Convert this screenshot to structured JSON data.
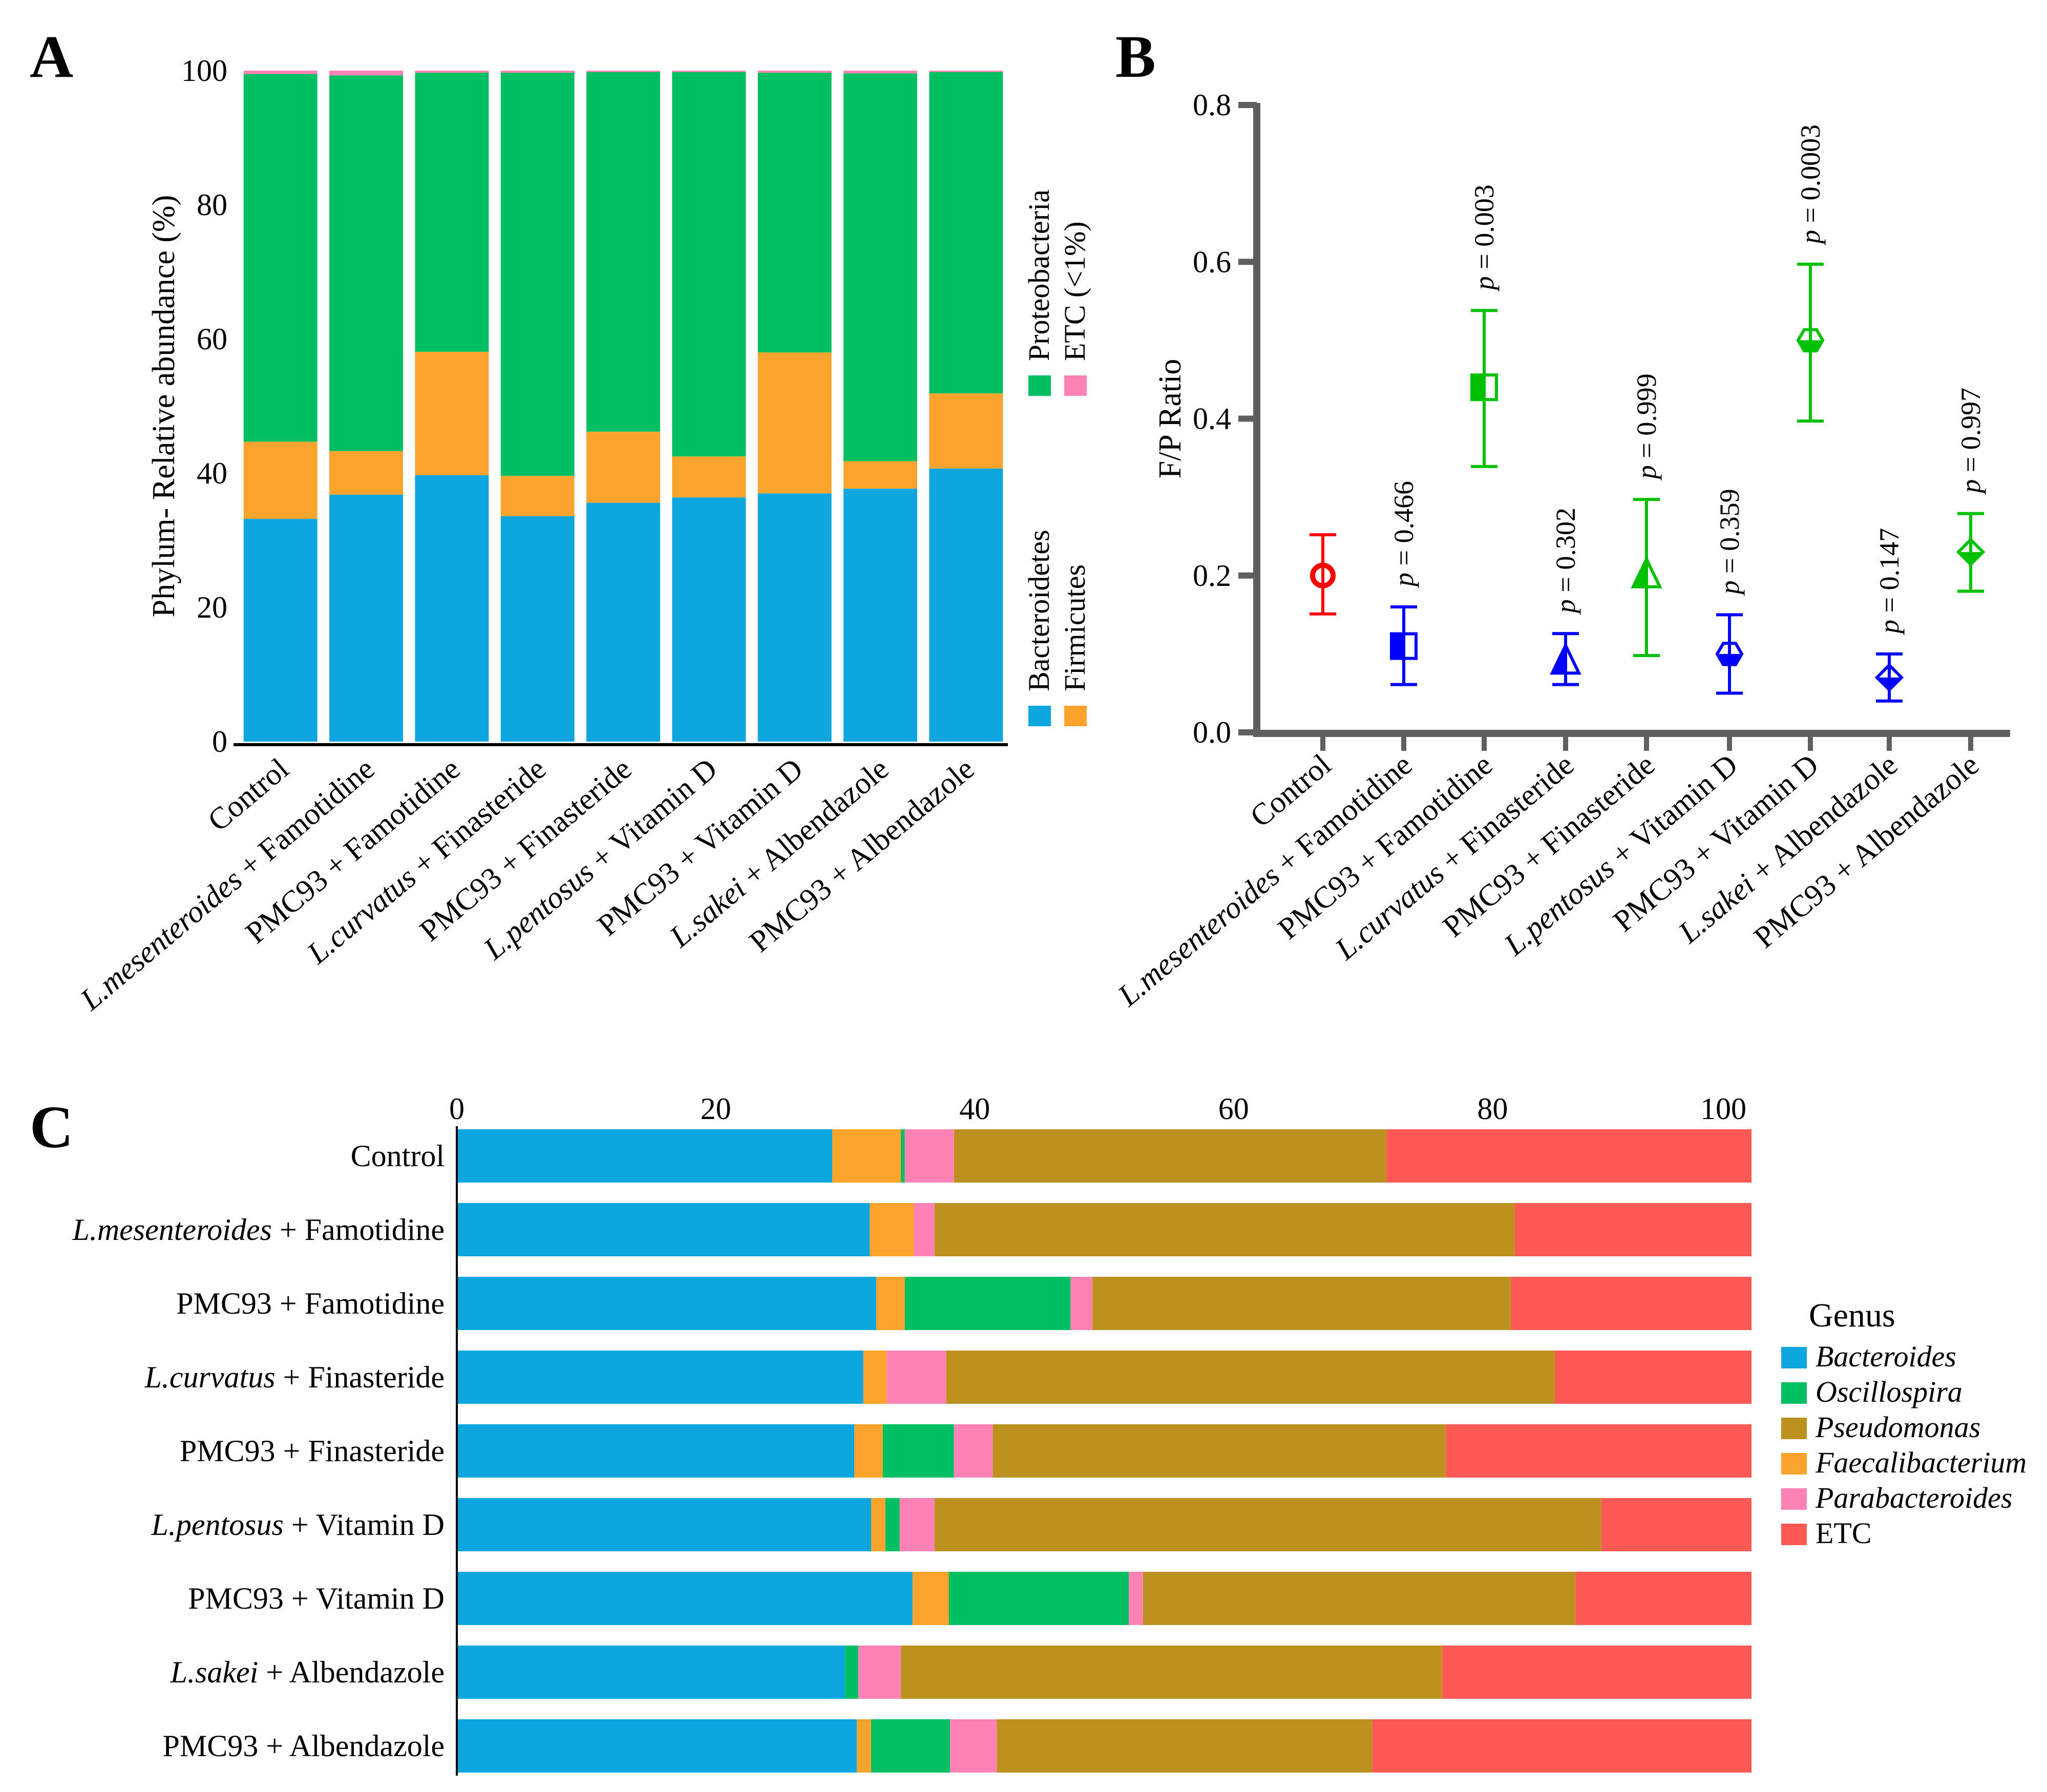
{
  "figure": {
    "panels": [
      "A",
      "B",
      "C"
    ]
  },
  "chart_data": [
    {
      "panel": "A",
      "type": "bar",
      "stacked": true,
      "orientation": "vertical",
      "title": "",
      "xlabel": "",
      "ylabel": "Phylum- Relative abundance (%)",
      "ylim": [
        0,
        100
      ],
      "yticks": [
        "0",
        "20",
        "40",
        "60",
        "80",
        "100"
      ],
      "categories": [
        {
          "italic": "",
          "rest": "Control"
        },
        {
          "italic": "L.mesenteroides",
          "rest": " + Famotidine"
        },
        {
          "italic": "",
          "rest": "PMC93 + Famotidine"
        },
        {
          "italic": "L.curvatus",
          "rest": " + Finasteride"
        },
        {
          "italic": "",
          "rest": "PMC93 + Finasteride"
        },
        {
          "italic": "L.pentosus",
          "rest": " + Vitamin D"
        },
        {
          "italic": "",
          "rest": "PMC93 + Vitamin D"
        },
        {
          "italic": "L.sakei",
          "rest": " + Albendazole"
        },
        {
          "italic": "",
          "rest": "PMC93 + Albendazole"
        }
      ],
      "series": [
        {
          "name": "Bacteroidetes",
          "color": "#0DA6DE",
          "values": [
            33.2,
            36.8,
            39.7,
            33.6,
            35.6,
            36.4,
            37.0,
            37.7,
            40.7
          ]
        },
        {
          "name": "Firmicutes",
          "color": "#FBA42D",
          "values": [
            11.5,
            6.5,
            18.4,
            6.0,
            10.6,
            6.1,
            21.0,
            4.1,
            11.2
          ]
        },
        {
          "name": "Proteobacteria",
          "color": "#00BE62",
          "values": [
            54.8,
            56.0,
            41.6,
            60.1,
            53.6,
            57.3,
            41.7,
            57.8,
            47.9
          ]
        },
        {
          "name": "ETC (<1%)",
          "color": "#FF82B4",
          "values": [
            0.5,
            0.7,
            0.3,
            0.3,
            0.2,
            0.2,
            0.3,
            0.4,
            0.2
          ]
        }
      ],
      "legend": {
        "placement": "right",
        "rotated": true,
        "order": [
          "Bacteroidetes",
          "Firmicutes",
          "Proteobacteria",
          "ETC (<1%)"
        ]
      }
    },
    {
      "panel": "B",
      "type": "scatter",
      "title": "",
      "xlabel": "",
      "ylabel": "F/P Ratio",
      "ylim": [
        0,
        0.8
      ],
      "yticks": [
        "0.0",
        "0.2",
        "0.4",
        "0.6",
        "0.8"
      ],
      "categories": [
        {
          "italic": "",
          "rest": "Control"
        },
        {
          "italic": "L.mesenteroides",
          "rest": " + Famotidine"
        },
        {
          "italic": "",
          "rest": "PMC93 + Famotidine"
        },
        {
          "italic": "L.curvatus",
          "rest": " + Finasteride"
        },
        {
          "italic": "",
          "rest": "PMC93 + Finasteride"
        },
        {
          "italic": "L.pentosus",
          "rest": " + Vitamin D"
        },
        {
          "italic": "",
          "rest": "PMC93 + Vitamin D"
        },
        {
          "italic": "L.sakei",
          "rest": " + Albendazole"
        },
        {
          "italic": "",
          "rest": "PMC93 + Albendazole"
        }
      ],
      "points": [
        {
          "mean": 0.2,
          "upper": 0.252,
          "lower": 0.151,
          "marker": "circle",
          "color": "#FF0000",
          "p": ""
        },
        {
          "mean": 0.11,
          "upper": 0.16,
          "lower": 0.061,
          "marker": "square",
          "color": "#0000FF",
          "p": "0.466"
        },
        {
          "mean": 0.44,
          "upper": 0.538,
          "lower": 0.339,
          "marker": "square",
          "color": "#00C000",
          "p": "0.003"
        },
        {
          "mean": 0.09,
          "upper": 0.126,
          "lower": 0.061,
          "marker": "triangle",
          "color": "#0000FF",
          "p": "0.302"
        },
        {
          "mean": 0.2,
          "upper": 0.297,
          "lower": 0.098,
          "marker": "triangle",
          "color": "#00C000",
          "p": "0.999"
        },
        {
          "mean": 0.1,
          "upper": 0.15,
          "lower": 0.05,
          "marker": "hexagon",
          "color": "#0000FF",
          "p": "0.359"
        },
        {
          "mean": 0.5,
          "upper": 0.597,
          "lower": 0.397,
          "marker": "hexagon",
          "color": "#00C000",
          "p": "0.0003"
        },
        {
          "mean": 0.07,
          "upper": 0.1,
          "lower": 0.04,
          "marker": "diamond",
          "color": "#0000FF",
          "p": "0.147"
        },
        {
          "mean": 0.23,
          "upper": 0.279,
          "lower": 0.18,
          "marker": "diamond",
          "color": "#00C000",
          "p": "0.997"
        }
      ],
      "p_prefix": "p",
      "p_equals": " = "
    },
    {
      "panel": "C",
      "type": "bar",
      "stacked": true,
      "orientation": "horizontal",
      "title": "",
      "xlabel": "",
      "ylabel": "",
      "xlim": [
        0,
        100
      ],
      "xticks": [
        "0",
        "20",
        "40",
        "60",
        "80",
        "100"
      ],
      "categories": [
        {
          "italic": "",
          "rest": "Control"
        },
        {
          "italic": "L.mesenteroides",
          "rest": " + Famotidine"
        },
        {
          "italic": "",
          "rest": "PMC93 + Famotidine"
        },
        {
          "italic": "L.curvatus",
          "rest": " + Finasteride"
        },
        {
          "italic": "",
          "rest": "PMC93 + Finasteride"
        },
        {
          "italic": "L.pentosus",
          "rest": " + Vitamin D"
        },
        {
          "italic": "",
          "rest": "PMC93 + Vitamin D"
        },
        {
          "italic": "L.sakei",
          "rest": " + Albendazole"
        },
        {
          "italic": "",
          "rest": "PMC93 + Albendazole"
        }
      ],
      "series": [
        {
          "name": "Bacteroides",
          "color": "#0DA6DE",
          "values": [
            29.0,
            31.9,
            32.4,
            31.4,
            30.7,
            32.0,
            35.2,
            30.0,
            30.9
          ]
        },
        {
          "name": "Faecalibacterium",
          "color": "#FBA42D",
          "values": [
            5.3,
            3.4,
            2.2,
            1.8,
            2.2,
            1.1,
            2.8,
            0.0,
            1.1
          ]
        },
        {
          "name": "Oscillospira",
          "color": "#00BE62",
          "values": [
            0.3,
            0.0,
            12.8,
            0.0,
            5.5,
            1.1,
            13.9,
            1.0,
            6.1
          ]
        },
        {
          "name": "Parabacteroides",
          "color": "#FF82B4",
          "values": [
            3.8,
            1.6,
            1.7,
            4.6,
            3.0,
            2.7,
            1.1,
            3.3,
            3.6
          ]
        },
        {
          "name": "Pseudomonas",
          "color": "#BD911F",
          "values": [
            33.4,
            44.8,
            32.3,
            47.0,
            35.0,
            51.5,
            33.4,
            41.8,
            29.0
          ]
        },
        {
          "name": "ETC",
          "color": "#FF5955",
          "values": [
            28.2,
            18.3,
            18.6,
            15.2,
            23.6,
            11.6,
            13.6,
            23.9,
            29.3
          ]
        }
      ],
      "legend": {
        "title": "Genus",
        "placement": "right",
        "items": [
          {
            "name": "Bacteroides",
            "color": "#0DA6DE",
            "italic": true
          },
          {
            "name": "Oscillospira",
            "color": "#00BE62",
            "italic": true
          },
          {
            "name": "Pseudomonas",
            "color": "#BD911F",
            "italic": true
          },
          {
            "name": "Faecalibacterium",
            "color": "#FBA42D",
            "italic": true
          },
          {
            "name": "Parabacteroides",
            "color": "#FF82B4",
            "italic": true
          },
          {
            "name": "ETC",
            "color": "#FF5955",
            "italic": false
          }
        ]
      }
    }
  ]
}
